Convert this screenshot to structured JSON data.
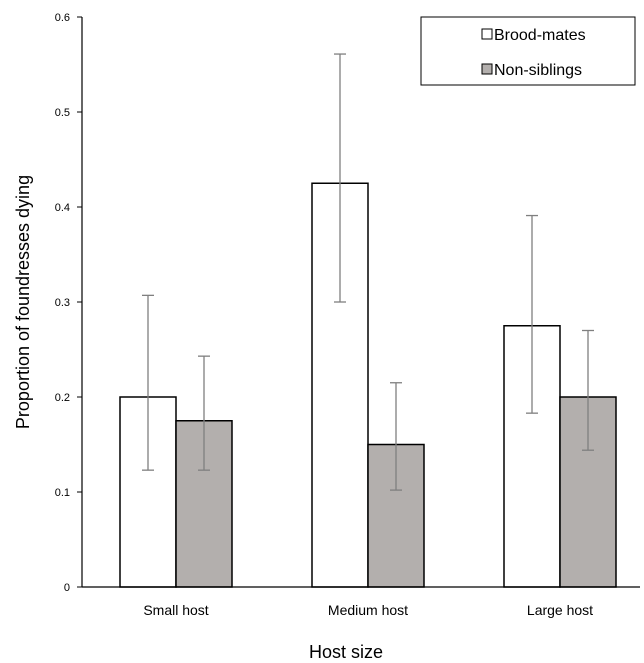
{
  "chart_data": {
    "type": "bar",
    "xlabel": "Host size",
    "ylabel": "Proportion of foundresses dying",
    "categories": [
      "Small host",
      "Medium host",
      "Large host"
    ],
    "series": [
      {
        "name": "Brood-mates",
        "values": [
          0.2,
          0.425,
          0.275
        ],
        "err_low": [
          0.123,
          0.3,
          0.183
        ],
        "err_high": [
          0.307,
          0.561,
          0.391
        ],
        "color": "#ffffff"
      },
      {
        "name": "Non-siblings",
        "values": [
          0.175,
          0.15,
          0.2
        ],
        "err_low": [
          0.123,
          0.102,
          0.144
        ],
        "err_high": [
          0.243,
          0.215,
          0.27
        ],
        "color": "#b3afad"
      }
    ],
    "ylim": [
      0,
      0.6
    ],
    "yticks": [
      0,
      0.1,
      0.2,
      0.3,
      0.4,
      0.5,
      0.6
    ],
    "ytick_labels": [
      "0",
      "0.1",
      "0.2",
      "0.3",
      "0.4",
      "0.5",
      "0.6"
    ],
    "grid": false,
    "legend_position": "top-right",
    "bar_outline_color": "#000000",
    "error_bar_color": "#7f7f7f"
  }
}
